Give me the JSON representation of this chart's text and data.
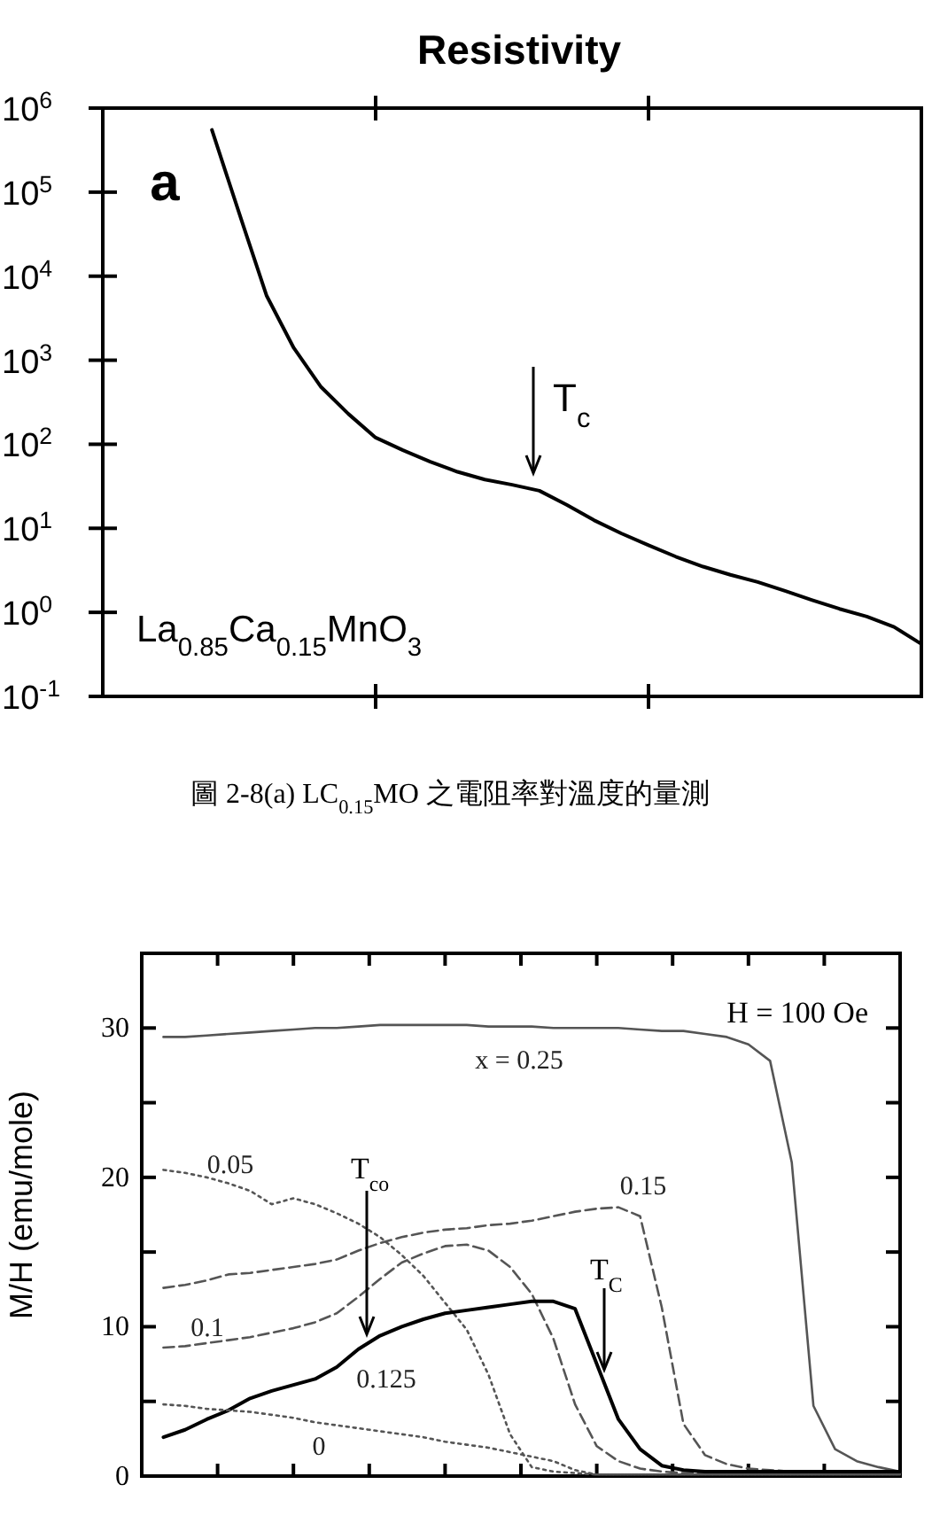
{
  "chart_data": [
    {
      "type": "line",
      "title": "Resistivity",
      "log": "y",
      "color": "#000000",
      "line_style": "solid",
      "grid": false,
      "categories": [
        null,
        null,
        null,
        null,
        null,
        null,
        null,
        null,
        null,
        null,
        null,
        null,
        null,
        null,
        null,
        null,
        null,
        null,
        null,
        null,
        null,
        null,
        null,
        null,
        null,
        null,
        null,
        null,
        null,
        null,
        null
      ],
      "values": [
        null,
        null,
        null,
        null,
        550000,
        56000,
        5900,
        1400,
        480,
        230,
        120,
        85,
        62,
        47,
        38,
        33,
        28,
        19,
        12.5,
        8.7,
        6.3,
        4.6,
        3.5,
        2.8,
        2.3,
        1.8,
        1.4,
        1.1,
        0.89,
        0.67,
        0.42
      ],
      "ylim": [
        0.1,
        1000000
      ],
      "yticks": [
        {
          "value": 0.1,
          "label": "10$^{-1}$"
        },
        {
          "value": 1,
          "label": "10$^{0}$"
        },
        {
          "value": 10,
          "label": "10$^{1}$"
        },
        {
          "value": 100,
          "label": "10$^{2}$"
        },
        {
          "value": 1000,
          "label": "10$^{3}$"
        },
        {
          "value": 10000,
          "label": "10$^{4}$"
        },
        {
          "value": 100000,
          "label": "10$^{5}$"
        },
        {
          "value": 1000000,
          "label": "10$^{6}$"
        }
      ],
      "annotations": [
        "a",
        "La$_{0.85}$Ca$_{0.15}$MnO$_{3}$",
        "T$_{c}$",
        "圖 2-8(a) LC$_{0.15}$MO 之電阻率對溫度的量測"
      ]
    },
    {
      "type": "line",
      "ylabel": "M/H (emu/mole)",
      "grid": false,
      "categories": [
        null,
        null,
        null,
        null,
        null,
        null,
        null,
        null,
        null,
        null,
        null,
        null,
        null,
        null,
        null,
        null,
        null,
        null,
        null,
        null,
        null,
        null,
        null,
        null,
        null,
        null,
        null,
        null,
        null,
        null,
        null,
        null,
        null,
        null,
        null,
        null
      ],
      "series": [
        {
          "name": "x = 0.25",
          "color": "#555555",
          "line_style": "solid",
          "values": [
            null,
            29.4,
            29.4,
            29.5,
            29.6,
            29.7,
            29.8,
            29.9,
            30.0,
            30.0,
            30.1,
            30.2,
            30.2,
            30.2,
            30.2,
            30.2,
            30.1,
            30.1,
            30.1,
            30.0,
            30.0,
            30.0,
            30.0,
            29.9,
            29.8,
            29.8,
            29.6,
            29.4,
            28.9,
            27.8,
            21.0,
            4.7,
            1.8,
            1.0,
            0.6,
            0.3
          ]
        },
        {
          "name": "0.05",
          "color": "#555555",
          "line_style": "dotted",
          "values": [
            null,
            20.5,
            20.3,
            20.0,
            19.6,
            19.1,
            18.2,
            18.6,
            18.2,
            17.6,
            16.9,
            16.0,
            14.8,
            13.4,
            11.6,
            9.8,
            6.8,
            2.8,
            0.6,
            0.3,
            0.2,
            0.1,
            0.1,
            0.1,
            0.1,
            0.1,
            0.1,
            0.1,
            0.1,
            0.1,
            0.1,
            0.1,
            0.1,
            0.1,
            0.1,
            0.1
          ]
        },
        {
          "name": "0.15",
          "color": "#555555",
          "line_style": "dashed",
          "values": [
            null,
            12.6,
            12.8,
            13.1,
            13.5,
            13.6,
            13.8,
            14.0,
            14.2,
            14.5,
            15.1,
            15.6,
            16.0,
            16.3,
            16.5,
            16.6,
            16.8,
            16.9,
            17.1,
            17.4,
            17.7,
            17.9,
            18.0,
            17.4,
            11.3,
            3.5,
            1.4,
            0.8,
            0.5,
            0.4,
            0.3,
            0.2,
            0.2,
            0.2,
            0.2,
            0.2
          ]
        },
        {
          "name": "0.1",
          "color": "#555555",
          "line_style": "dashed",
          "values": [
            null,
            8.6,
            8.7,
            8.9,
            9.1,
            9.3,
            9.6,
            9.9,
            10.3,
            10.9,
            12.0,
            13.2,
            14.3,
            14.9,
            15.4,
            15.5,
            15.1,
            14.0,
            12.2,
            9.2,
            4.8,
            2.0,
            1.0,
            0.5,
            0.3,
            0.2,
            0.2,
            0.2,
            0.2,
            0.2,
            0.2,
            0.2,
            0.2,
            0.2,
            0.2,
            0.2
          ]
        },
        {
          "name": "0.125",
          "color": "#000000",
          "line_style": "solid",
          "values": [
            null,
            2.6,
            3.1,
            3.8,
            4.4,
            5.2,
            5.7,
            6.1,
            6.5,
            7.3,
            8.5,
            9.4,
            10.0,
            10.5,
            10.9,
            11.1,
            11.3,
            11.5,
            11.7,
            11.7,
            11.2,
            7.5,
            3.8,
            1.8,
            0.7,
            0.4,
            0.3,
            0.3,
            0.3,
            0.3,
            0.3,
            0.3,
            0.3,
            0.3,
            0.3,
            0.3
          ]
        },
        {
          "name": "0",
          "color": "#555555",
          "line_style": "dotted",
          "values": [
            null,
            4.8,
            4.7,
            4.5,
            4.4,
            4.3,
            4.1,
            3.9,
            3.6,
            3.4,
            3.2,
            3.0,
            2.8,
            2.6,
            2.3,
            2.1,
            1.9,
            1.6,
            1.3,
            1.0,
            0.4,
            0.1,
            0.1,
            0.1,
            0.1,
            0.1,
            0.1,
            0.1,
            0.1,
            0.1,
            0.1,
            0.1,
            0.1,
            0.1,
            0.1,
            0.1
          ]
        }
      ],
      "ylim": [
        0,
        35
      ],
      "yticks": [
        0,
        {
          "value": 5,
          "label": null
        },
        10,
        {
          "value": 15,
          "label": null
        },
        20,
        {
          "value": 25,
          "label": null
        },
        30
      ],
      "annotations": [
        "H = 100 Oe",
        "T$_{co}$",
        "T$_{C}$"
      ]
    }
  ]
}
